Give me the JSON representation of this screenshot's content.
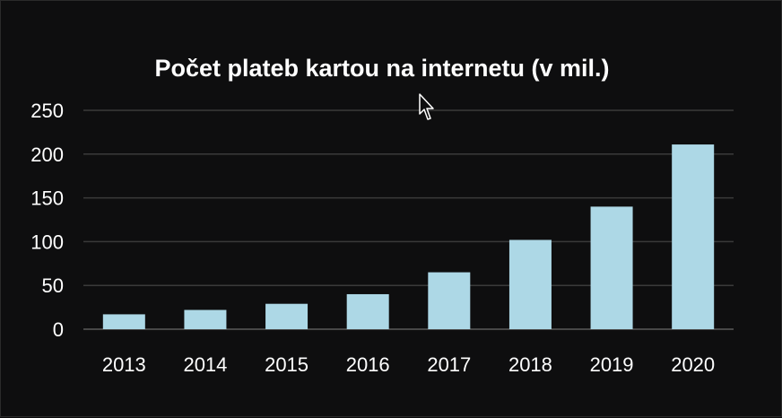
{
  "chart_data": {
    "type": "bar",
    "title": "Počet plateb kartou na internetu (v mil.)",
    "xlabel": "",
    "ylabel": "",
    "categories": [
      "2013",
      "2014",
      "2015",
      "2016",
      "2017",
      "2018",
      "2019",
      "2020"
    ],
    "values": [
      17,
      22,
      29,
      40,
      65,
      102,
      140,
      211
    ],
    "ylim": [
      0,
      250
    ],
    "yticks": [
      0,
      50,
      100,
      150,
      200,
      250
    ],
    "grid": true,
    "legend": "none",
    "colors": {
      "bar": "#add8e6",
      "background": "#0e0e0f",
      "text": "#ffffff",
      "grid": "#3a3a3a"
    }
  }
}
